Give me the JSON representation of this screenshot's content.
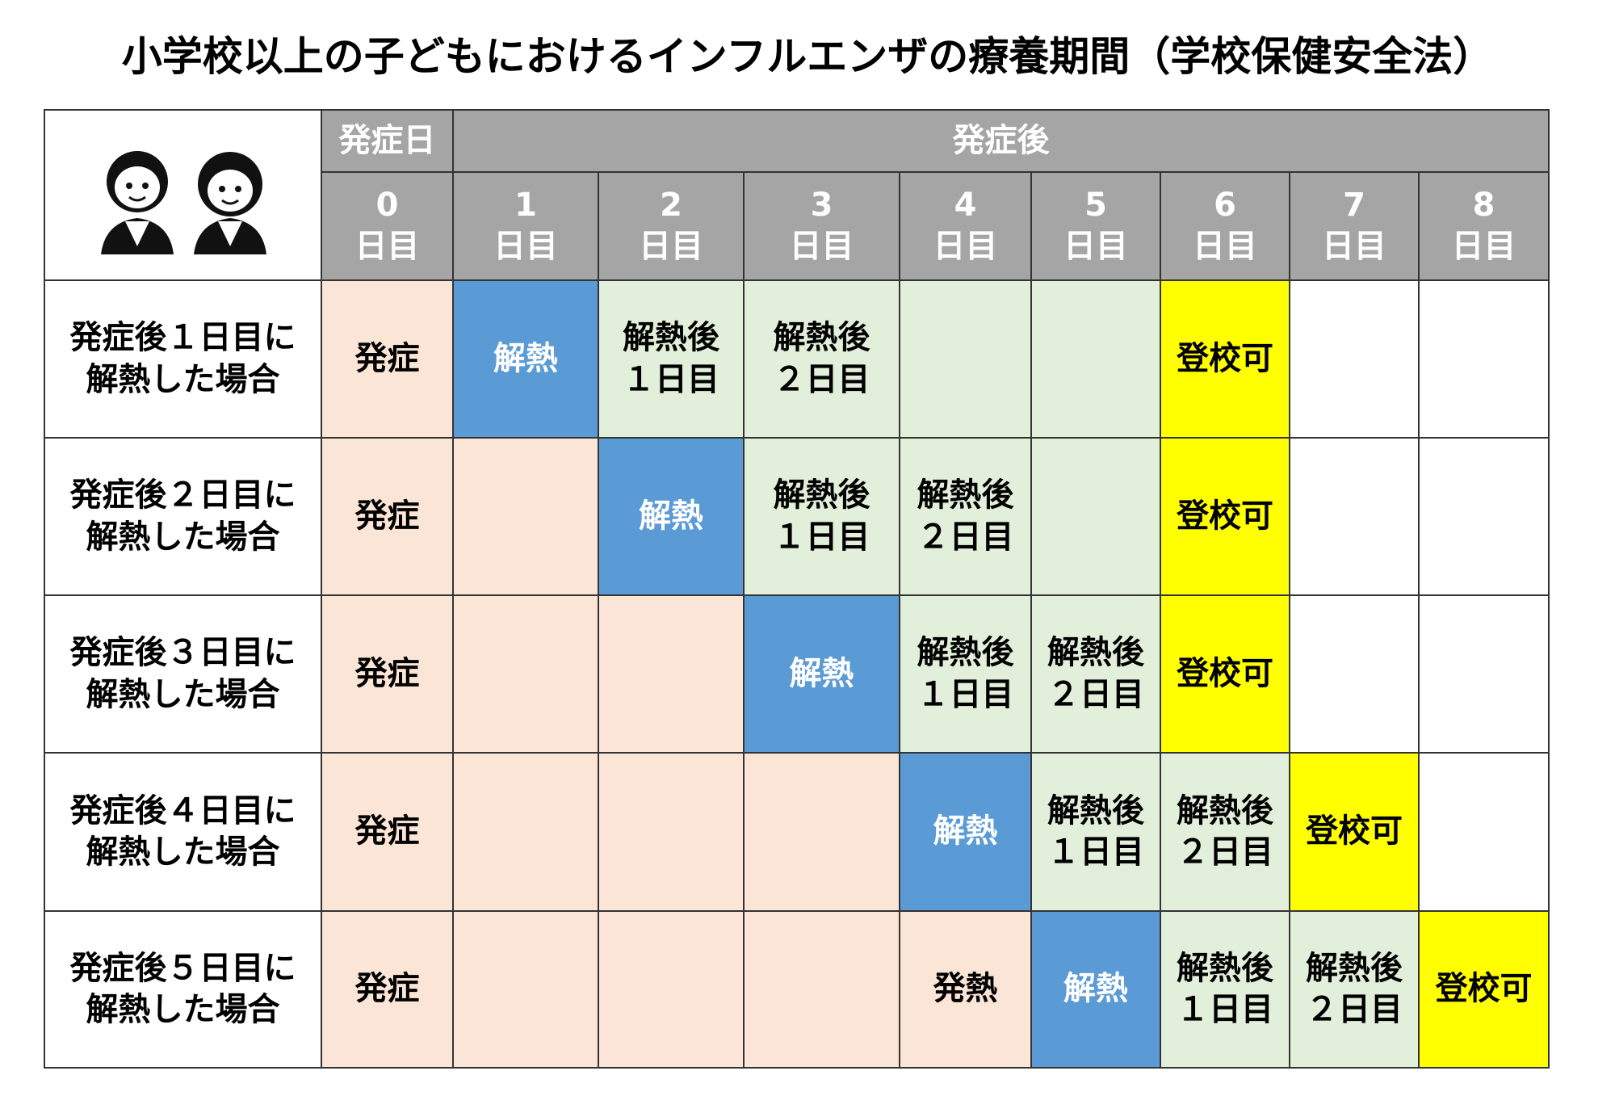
{
  "title": "小学校以上の子どもにおけるインフルエンザの療養期間（学校保健安全法）",
  "colors": {
    "header": "#a5a5a5",
    "onset": "#fbe5d6",
    "fever_down": "#5b9bd5",
    "after": "#e2efda",
    "ok": "#ffff00",
    "blank": "#ffffff"
  },
  "header": {
    "onset_day": "発症日",
    "after_onset": "発症後",
    "days": [
      {
        "num": "0",
        "label": "日目"
      },
      {
        "num": "1",
        "label": "日目"
      },
      {
        "num": "2",
        "label": "日目"
      },
      {
        "num": "3",
        "label": "日目"
      },
      {
        "num": "4",
        "label": "日目"
      },
      {
        "num": "5",
        "label": "日目"
      },
      {
        "num": "6",
        "label": "日目"
      },
      {
        "num": "7",
        "label": "日目"
      },
      {
        "num": "8",
        "label": "日目"
      }
    ]
  },
  "rows": [
    {
      "label": [
        "発症後１日目に",
        "解熱した場合"
      ],
      "cells": [
        {
          "kind": "onset",
          "text": [
            "発症"
          ]
        },
        {
          "kind": "fever_down",
          "text": [
            "解熱"
          ]
        },
        {
          "kind": "after",
          "text": [
            "解熱後",
            "１日目"
          ]
        },
        {
          "kind": "after",
          "text": [
            "解熱後",
            "２日目"
          ]
        },
        {
          "kind": "after"
        },
        {
          "kind": "after"
        },
        {
          "kind": "ok",
          "text": [
            "登校可"
          ]
        },
        {
          "kind": "blank"
        },
        {
          "kind": "blank"
        }
      ]
    },
    {
      "label": [
        "発症後２日目に",
        "解熱した場合"
      ],
      "cells": [
        {
          "kind": "onset",
          "text": [
            "発症"
          ]
        },
        {
          "kind": "onset"
        },
        {
          "kind": "fever_down",
          "text": [
            "解熱"
          ]
        },
        {
          "kind": "after",
          "text": [
            "解熱後",
            "１日目"
          ]
        },
        {
          "kind": "after",
          "text": [
            "解熱後",
            "２日目"
          ]
        },
        {
          "kind": "after"
        },
        {
          "kind": "ok",
          "text": [
            "登校可"
          ]
        },
        {
          "kind": "blank"
        },
        {
          "kind": "blank"
        }
      ]
    },
    {
      "label": [
        "発症後３日目に",
        "解熱した場合"
      ],
      "cells": [
        {
          "kind": "onset",
          "text": [
            "発症"
          ]
        },
        {
          "kind": "onset"
        },
        {
          "kind": "onset"
        },
        {
          "kind": "fever_down",
          "text": [
            "解熱"
          ]
        },
        {
          "kind": "after",
          "text": [
            "解熱後",
            "１日目"
          ]
        },
        {
          "kind": "after",
          "text": [
            "解熱後",
            "２日目"
          ]
        },
        {
          "kind": "ok",
          "text": [
            "登校可"
          ]
        },
        {
          "kind": "blank"
        },
        {
          "kind": "blank"
        }
      ]
    },
    {
      "label": [
        "発症後４日目に",
        "解熱した場合"
      ],
      "cells": [
        {
          "kind": "onset",
          "text": [
            "発症"
          ]
        },
        {
          "kind": "onset"
        },
        {
          "kind": "onset"
        },
        {
          "kind": "onset"
        },
        {
          "kind": "fever_down",
          "text": [
            "解熱"
          ]
        },
        {
          "kind": "after",
          "text": [
            "解熱後",
            "１日目"
          ]
        },
        {
          "kind": "after",
          "text": [
            "解熱後",
            "２日目"
          ]
        },
        {
          "kind": "ok",
          "text": [
            "登校可"
          ]
        },
        {
          "kind": "blank"
        }
      ]
    },
    {
      "label": [
        "発症後５日目に",
        "解熱した場合"
      ],
      "cells": [
        {
          "kind": "onset",
          "text": [
            "発症"
          ]
        },
        {
          "kind": "onset"
        },
        {
          "kind": "onset"
        },
        {
          "kind": "onset"
        },
        {
          "kind": "onset",
          "text": [
            "発熱"
          ]
        },
        {
          "kind": "fever_down",
          "text": [
            "解熱"
          ]
        },
        {
          "kind": "after",
          "text": [
            "解熱後",
            "１日目"
          ]
        },
        {
          "kind": "after",
          "text": [
            "解熱後",
            "２日目"
          ]
        },
        {
          "kind": "ok",
          "text": [
            "登校可"
          ]
        }
      ]
    }
  ]
}
